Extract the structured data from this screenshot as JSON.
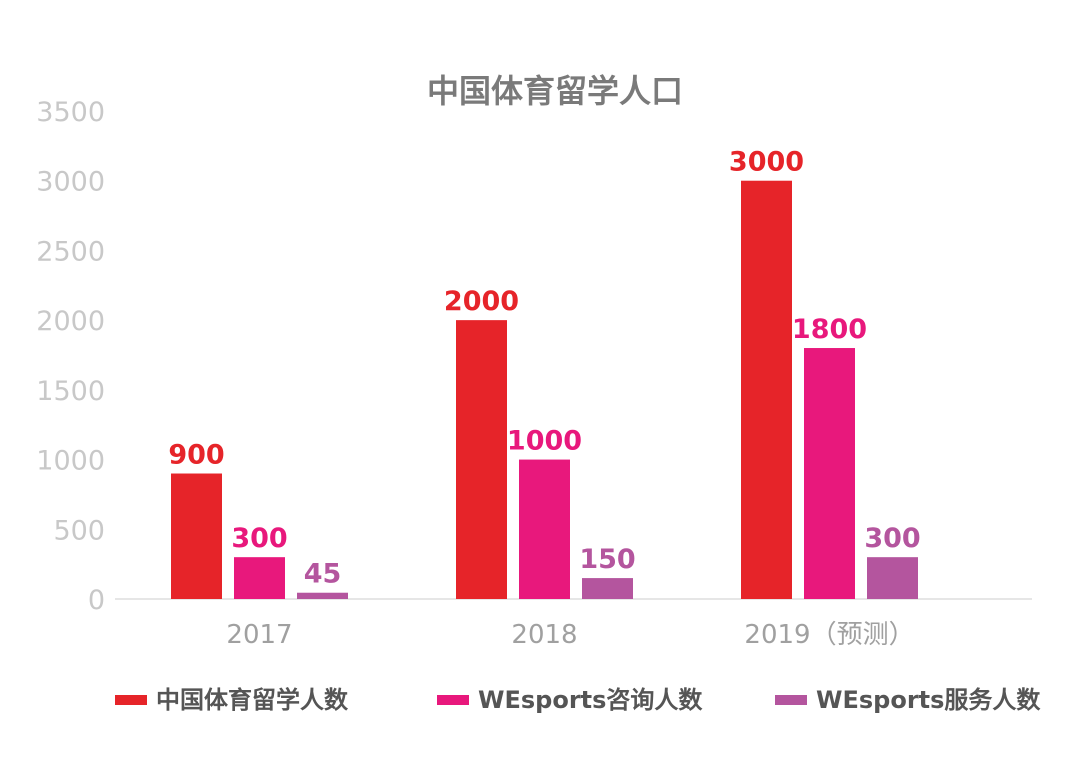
{
  "chart_data": {
    "type": "bar",
    "title": "中国体育留学人口",
    "categories": [
      "2017",
      "2018",
      "2019（预测）"
    ],
    "series": [
      {
        "name": "中国体育留学人数",
        "values": [
          900,
          2000,
          3000
        ],
        "color": "#e62429"
      },
      {
        "name": "WEsports咨询人数",
        "values": [
          300,
          1000,
          1800
        ],
        "color": "#e8187c"
      },
      {
        "name": "WEsports服务人数",
        "values": [
          45,
          150,
          300
        ],
        "color": "#b4559e"
      }
    ],
    "data_labels": [
      [
        "900",
        "2000",
        "3000"
      ],
      [
        "300",
        "1000",
        "1800"
      ],
      [
        "45",
        "150",
        "300"
      ]
    ],
    "yticks": [
      "0",
      "500",
      "1000",
      "1500",
      "2000",
      "2500",
      "3000",
      "3500"
    ],
    "ylim": [
      0,
      3500
    ],
    "xlabel": "",
    "ylabel": "",
    "grid": false,
    "legend_position": "bottom"
  }
}
